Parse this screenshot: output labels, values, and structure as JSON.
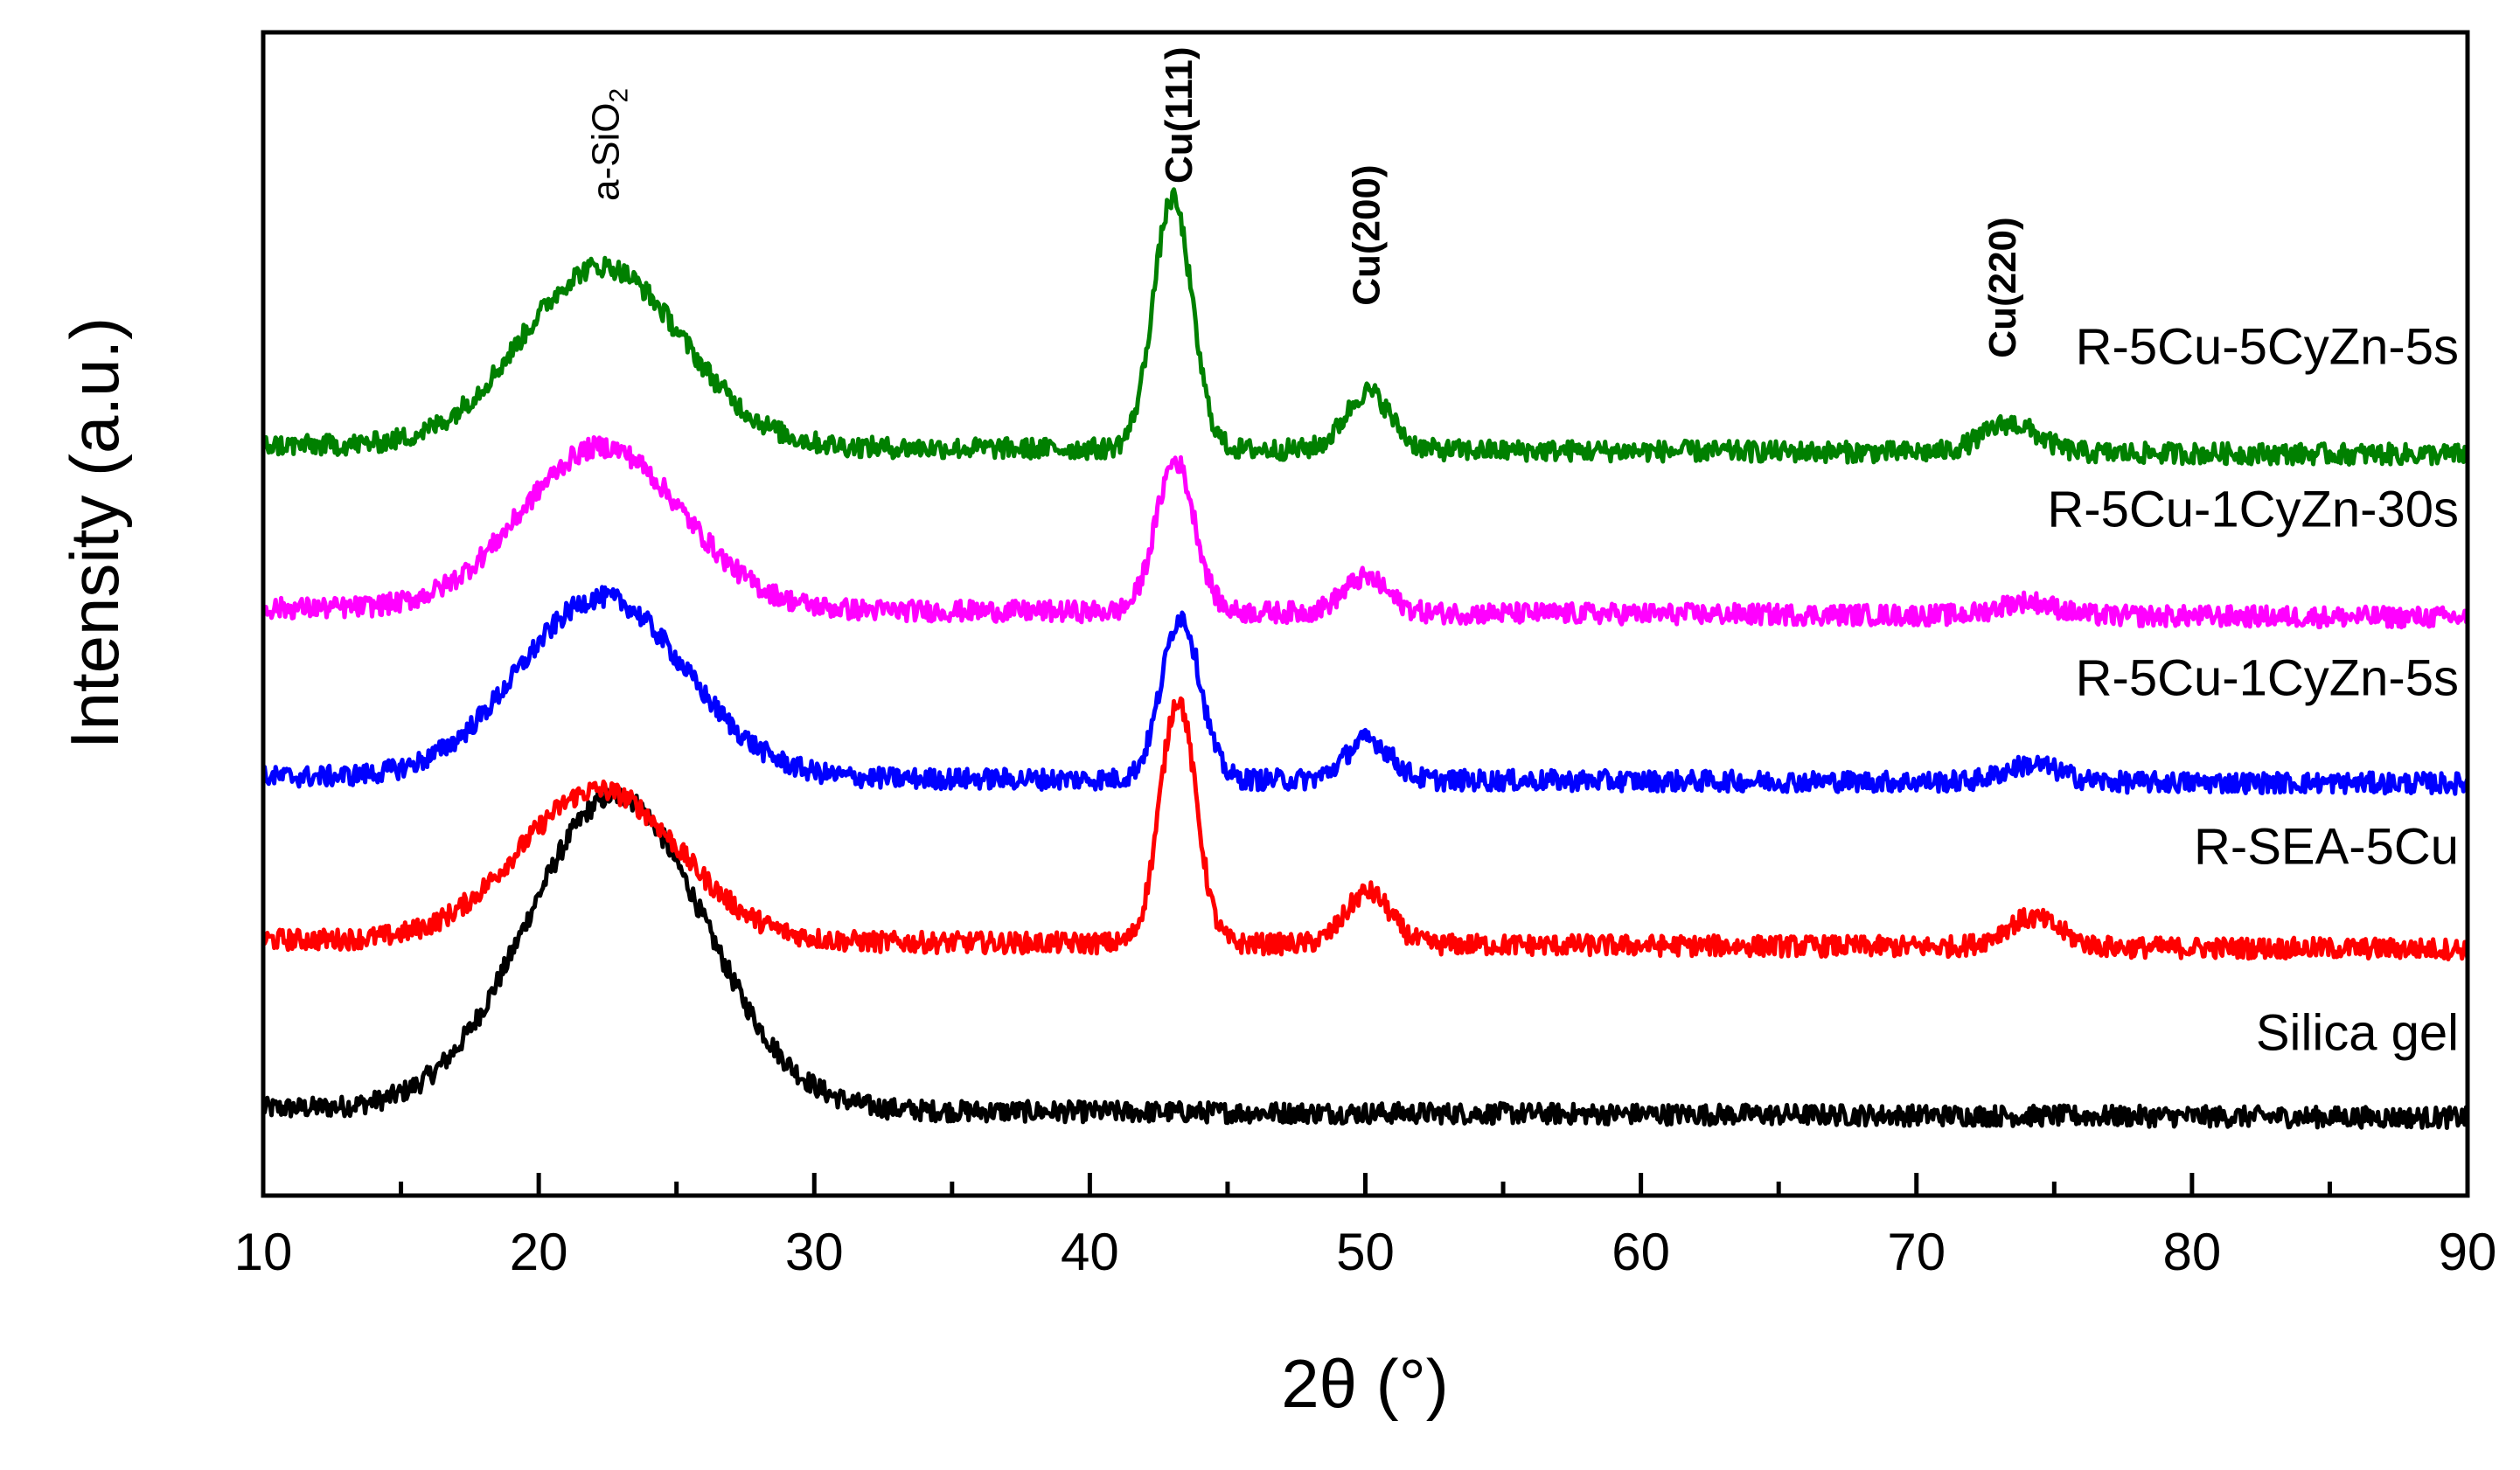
{
  "chart_data": {
    "type": "line",
    "title": "",
    "xlabel": "2θ (°)",
    "ylabel": "Intensity (a.u.)",
    "xlim": [
      10,
      90
    ],
    "ylim": [
      0,
      1
    ],
    "x_ticks": [
      10,
      20,
      30,
      40,
      50,
      60,
      70,
      80,
      90
    ],
    "grid": false,
    "legend": "none",
    "noise": {
      "amplitude": 0.009,
      "step": 0.05
    },
    "series": [
      {
        "name": "Silica gel",
        "color": "#000000",
        "baseline": 0.075,
        "slope": -0.0001,
        "peaks": [
          {
            "center": 22.8,
            "width": 3.2,
            "height": 0.27
          }
        ]
      },
      {
        "name": "R-SEA-5Cu",
        "color": "#ff0000",
        "baseline": 0.22,
        "slope": -0.0001,
        "peaks": [
          {
            "center": 22.2,
            "width": 2.9,
            "height": 0.13
          },
          {
            "center": 43.2,
            "width": 0.65,
            "height": 0.21
          },
          {
            "center": 50.1,
            "width": 0.8,
            "height": 0.045
          },
          {
            "center": 74.2,
            "width": 1.0,
            "height": 0.025
          }
        ]
      },
      {
        "name": "R-5Cu-1CyZn-5s",
        "color": "#0000ff",
        "baseline": 0.36,
        "slope": -7e-05,
        "peaks": [
          {
            "center": 22.3,
            "width": 3.0,
            "height": 0.155
          },
          {
            "center": 43.3,
            "width": 0.7,
            "height": 0.14
          },
          {
            "center": 50.1,
            "width": 0.8,
            "height": 0.035
          },
          {
            "center": 74.2,
            "width": 1.0,
            "height": 0.015
          }
        ]
      },
      {
        "name": "R-5Cu-1CyZn-30s",
        "color": "#ff00ff",
        "baseline": 0.505,
        "slope": -0.0001,
        "peaks": [
          {
            "center": 22.3,
            "width": 2.9,
            "height": 0.14
          },
          {
            "center": 43.1,
            "width": 0.7,
            "height": 0.13
          },
          {
            "center": 50.0,
            "width": 0.8,
            "height": 0.03
          },
          {
            "center": 74.0,
            "width": 1.0,
            "height": 0.012
          }
        ]
      },
      {
        "name": "R-5Cu-5CyZn-5s",
        "color": "#008000",
        "baseline": 0.645,
        "slope": -0.0001,
        "peaks": [
          {
            "center": 22.3,
            "width": 2.9,
            "height": 0.155
          },
          {
            "center": 43.0,
            "width": 0.7,
            "height": 0.215
          },
          {
            "center": 50.1,
            "width": 0.8,
            "height": 0.05
          },
          {
            "center": 73.4,
            "width": 1.0,
            "height": 0.025
          }
        ]
      }
    ],
    "series_labels": [
      {
        "text": "R-5Cu-5CyZn-5s",
        "x": 90,
        "y": 0.715
      },
      {
        "text": "R-5Cu-1CyZn-30s",
        "x": 90,
        "y": 0.575
      },
      {
        "text": "R-5Cu-1CyZn-5s",
        "x": 90,
        "y": 0.43
      },
      {
        "text": "R-SEA-5Cu",
        "x": 90,
        "y": 0.285
      },
      {
        "text": "Silica gel",
        "x": 90,
        "y": 0.125
      }
    ],
    "peak_labels": [
      {
        "text": "a-SiO2",
        "base": "a-SiO",
        "subscript": "2",
        "x": 22.9,
        "y": 0.855,
        "bold": false
      },
      {
        "text": "Cu(111)",
        "x": 43.7,
        "y": 0.87,
        "bold": true
      },
      {
        "text": "Cu(200)",
        "x": 50.5,
        "y": 0.765,
        "bold": true
      },
      {
        "text": "Cu(220)",
        "x": 73.6,
        "y": 0.72,
        "bold": true
      }
    ]
  }
}
